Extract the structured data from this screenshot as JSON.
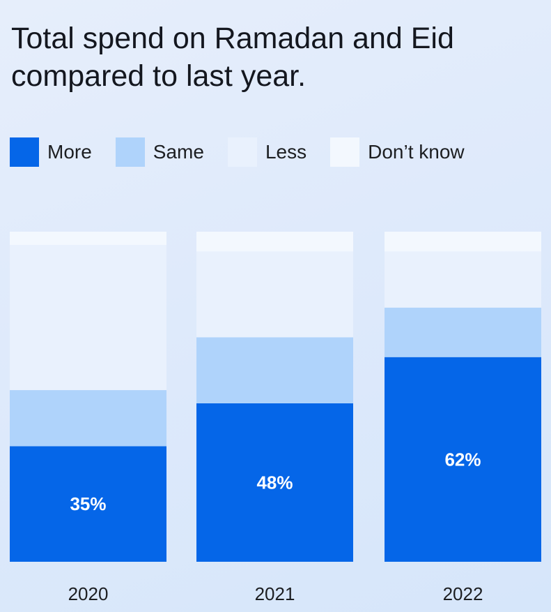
{
  "title": "Total spend on Ramadan and Eid compared to last year.",
  "legend": [
    {
      "label": "More",
      "color": "#0566e8"
    },
    {
      "label": "Same",
      "color": "#afd3fb"
    },
    {
      "label": "Less",
      "color": "#e9f1fd"
    },
    {
      "label": "Don’t know",
      "color": "#f3f8fe"
    }
  ],
  "chart_data": {
    "type": "bar",
    "stacked": true,
    "categories": [
      "2020",
      "2021",
      "2022"
    ],
    "series": [
      {
        "name": "More",
        "values": [
          35,
          48,
          62
        ],
        "color": "#0566e8"
      },
      {
        "name": "Same",
        "values": [
          17,
          20,
          15
        ],
        "color": "#afd3fb"
      },
      {
        "name": "Less",
        "values": [
          44,
          26,
          17
        ],
        "color": "#e9f1fd"
      },
      {
        "name": "Don’t know",
        "values": [
          4,
          6,
          6
        ],
        "color": "#f3f8fe"
      }
    ],
    "data_labels": [
      "35%",
      "48%",
      "62%"
    ],
    "ylim": [
      0,
      100
    ],
    "grid": false,
    "legend_position": "top-left"
  }
}
